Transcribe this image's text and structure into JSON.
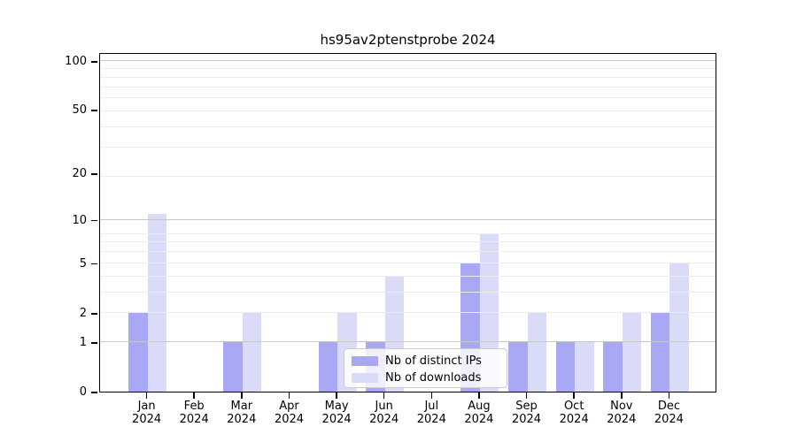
{
  "title": "hs95av2ptenstprobe 2024",
  "legend": {
    "items": [
      {
        "label": "Nb of distinct IPs",
        "color": "#a8a8f4"
      },
      {
        "label": "Nb of downloads",
        "color": "#dadaf9"
      }
    ]
  },
  "chart_data": {
    "type": "bar",
    "title": "hs95av2ptenstprobe 2024",
    "categories": [
      "Jan 2024",
      "Feb 2024",
      "Mar 2024",
      "Apr 2024",
      "May 2024",
      "Jun 2024",
      "Jul 2024",
      "Aug 2024",
      "Sep 2024",
      "Oct 2024",
      "Nov 2024",
      "Dec 2024"
    ],
    "series": [
      {
        "name": "Nb of distinct IPs",
        "color": "#a8a8f4",
        "values": [
          2,
          0,
          1,
          0,
          1,
          1,
          0,
          5,
          1,
          1,
          1,
          2
        ]
      },
      {
        "name": "Nb of downloads",
        "color": "#dadaf9",
        "values": [
          11,
          0,
          2,
          0,
          2,
          4,
          0,
          8,
          2,
          1,
          2,
          5
        ]
      }
    ],
    "xlabel": "",
    "ylabel": "",
    "yscale": "log10(value+1)",
    "yticks": [
      0,
      1,
      2,
      5,
      10,
      20,
      50,
      100
    ],
    "ylim": [
      0,
      113
    ],
    "grid": "both, drawn over bars",
    "legend_position": "lower center"
  }
}
